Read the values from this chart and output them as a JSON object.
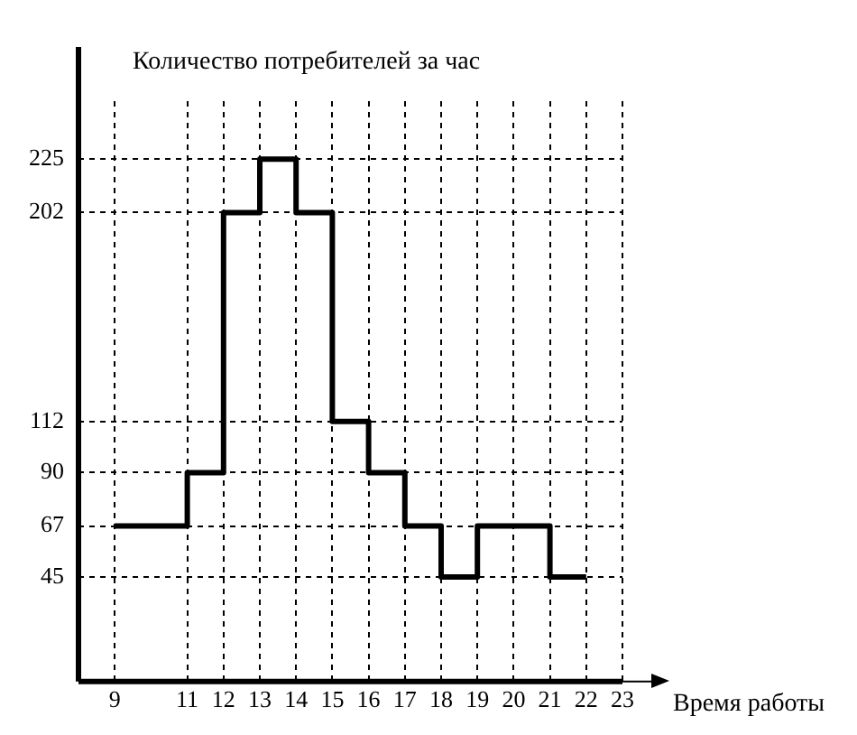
{
  "chart_data": {
    "type": "step",
    "ylabel": "Количество потребителей за час",
    "xlabel": "Время работы",
    "x": [
      9,
      11,
      12,
      13,
      14,
      15,
      16,
      17,
      18,
      19,
      20,
      21,
      22
    ],
    "series": [
      {
        "color": "#000000",
        "values": [
          67,
          90,
          202,
          225,
          202,
          112,
          90,
          67,
          45,
          67,
          67,
          45,
          45
        ]
      }
    ],
    "xlim": [
      8,
      23
    ],
    "xticks": [
      9,
      11,
      12,
      13,
      14,
      15,
      16,
      17,
      18,
      19,
      20,
      21,
      22,
      23
    ],
    "ylim": [
      0,
      250
    ],
    "yticks": [
      45,
      67,
      90,
      112,
      202,
      225
    ],
    "grid": true,
    "legend": false,
    "marker": "none",
    "line_style": "solid"
  }
}
